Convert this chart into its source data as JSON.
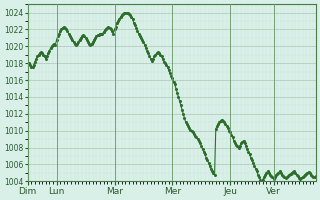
{
  "title": "",
  "ylabel": "",
  "xlabel": "",
  "bg_color": "#d8f0e8",
  "plot_bg_color": "#d8f0e8",
  "line_color": "#2d6e2d",
  "grid_color_major": "#a0c8b0",
  "grid_color_minor": "#c8e8d8",
  "ylim": [
    1004,
    1025
  ],
  "yticks": [
    1004,
    1006,
    1008,
    1010,
    1012,
    1014,
    1016,
    1018,
    1020,
    1022,
    1024
  ],
  "day_labels": [
    "Dim",
    "Lun",
    "Mar",
    "Mer",
    "Jeu",
    "Ver"
  ],
  "day_positions": [
    0,
    24,
    72,
    120,
    168,
    216
  ],
  "n_points": 240,
  "pressure_data": [
    1018.0,
    1018.0,
    1017.8,
    1017.5,
    1017.5,
    1017.8,
    1018.2,
    1018.5,
    1018.8,
    1019.0,
    1019.2,
    1019.3,
    1019.2,
    1019.0,
    1018.8,
    1018.5,
    1018.8,
    1019.2,
    1019.5,
    1019.8,
    1020.0,
    1020.2,
    1020.3,
    1020.2,
    1020.8,
    1021.2,
    1021.5,
    1021.8,
    1022.0,
    1022.2,
    1022.3,
    1022.2,
    1022.0,
    1021.8,
    1021.5,
    1021.2,
    1021.0,
    1020.8,
    1020.5,
    1020.3,
    1020.2,
    1020.3,
    1020.5,
    1020.8,
    1021.0,
    1021.2,
    1021.3,
    1021.2,
    1021.0,
    1020.8,
    1020.5,
    1020.3,
    1020.2,
    1020.3,
    1020.5,
    1020.8,
    1021.0,
    1021.2,
    1021.3,
    1021.4,
    1021.5,
    1021.5,
    1021.5,
    1021.7,
    1021.9,
    1022.1,
    1022.2,
    1022.3,
    1022.2,
    1022.0,
    1021.8,
    1021.5,
    1022.0,
    1022.3,
    1022.8,
    1023.0,
    1023.2,
    1023.5,
    1023.7,
    1023.8,
    1023.9,
    1024.0,
    1024.0,
    1023.9,
    1023.8,
    1023.7,
    1023.5,
    1023.2,
    1022.8,
    1022.5,
    1022.2,
    1021.8,
    1021.5,
    1021.2,
    1021.0,
    1020.8,
    1020.5,
    1020.2,
    1019.8,
    1019.5,
    1019.2,
    1018.8,
    1018.5,
    1018.3,
    1018.5,
    1018.8,
    1019.0,
    1019.2,
    1019.3,
    1019.2,
    1019.0,
    1018.8,
    1018.5,
    1018.2,
    1018.0,
    1017.8,
    1017.5,
    1017.2,
    1016.8,
    1016.5,
    1016.2,
    1015.8,
    1015.5,
    1015.0,
    1014.5,
    1014.0,
    1013.5,
    1013.0,
    1012.5,
    1012.0,
    1011.5,
    1011.0,
    1010.8,
    1010.5,
    1010.3,
    1010.1,
    1010.0,
    1009.8,
    1009.6,
    1009.4,
    1009.2,
    1009.0,
    1008.8,
    1008.5,
    1008.2,
    1007.8,
    1007.5,
    1007.2,
    1006.8,
    1006.5,
    1006.2,
    1005.8,
    1005.5,
    1005.2,
    1005.0,
    1004.8,
    1010.2,
    1010.5,
    1010.8,
    1011.0,
    1011.2,
    1011.3,
    1011.2,
    1011.0,
    1010.8,
    1010.5,
    1010.3,
    1010.0,
    1009.8,
    1009.5,
    1009.2,
    1008.8,
    1008.5,
    1008.3,
    1008.2,
    1008.0,
    1008.2,
    1008.5,
    1008.7,
    1008.8,
    1008.5,
    1008.2,
    1007.8,
    1007.5,
    1007.2,
    1006.8,
    1006.5,
    1006.2,
    1005.8,
    1005.5,
    1005.2,
    1004.8,
    1004.5,
    1004.2,
    1004.0,
    1004.2,
    1004.5,
    1004.8,
    1005.0,
    1005.2,
    1005.0,
    1004.8,
    1004.6,
    1004.5,
    1004.3,
    1004.5,
    1004.7,
    1004.9,
    1005.0,
    1005.2,
    1005.0,
    1004.8,
    1004.6,
    1004.5,
    1004.4,
    1004.5,
    1004.6,
    1004.8,
    1004.9,
    1005.0,
    1005.1,
    1005.2,
    1005.0,
    1004.8,
    1004.6,
    1004.4,
    1004.3,
    1004.4,
    1004.5,
    1004.6,
    1004.8,
    1004.9,
    1005.0,
    1005.1,
    1005.0,
    1004.8,
    1004.6,
    1004.5,
    1004.5,
    1004.6
  ]
}
